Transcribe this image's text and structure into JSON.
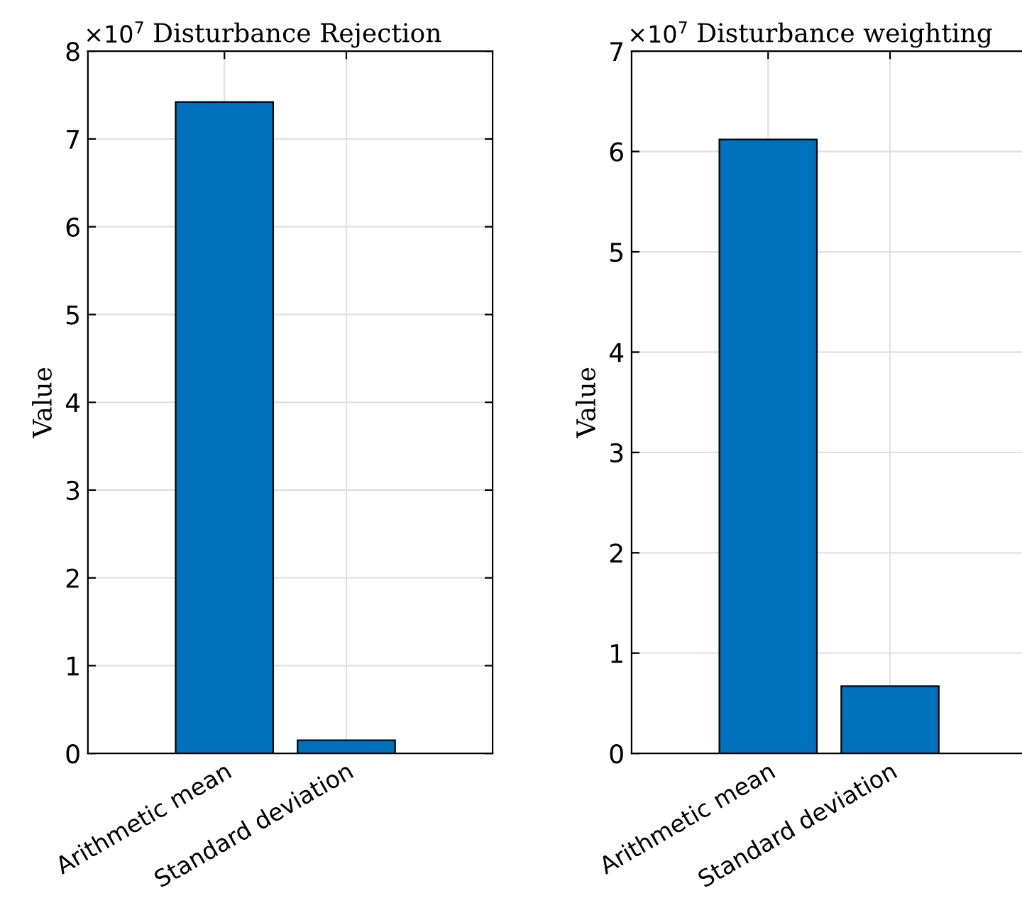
{
  "chart_data": [
    {
      "type": "bar",
      "title": "Disturbance Rejection",
      "ylabel": "Value",
      "categories": [
        "Arithmetic mean",
        "Standard deviation"
      ],
      "values": [
        7.42,
        0.15
      ],
      "color": "#0072bd",
      "ylim": [
        0,
        8
      ],
      "yticks": [
        0,
        1,
        2,
        3,
        4,
        5,
        6,
        7,
        8
      ],
      "grid": true,
      "annotations": [
        "×10$^{7}$"
      ]
    },
    {
      "type": "bar",
      "title": "Disturbance weighting",
      "ylabel": "Value",
      "categories": [
        "Arithmetic mean",
        "Standard deviation"
      ],
      "values": [
        6.12,
        0.67
      ],
      "color": "#0072bd",
      "ylim": [
        0,
        7
      ],
      "yticks": [
        0,
        1,
        2,
        3,
        4,
        5,
        6,
        7
      ],
      "grid": true,
      "annotations": [
        "×10$^{7}$"
      ]
    }
  ]
}
